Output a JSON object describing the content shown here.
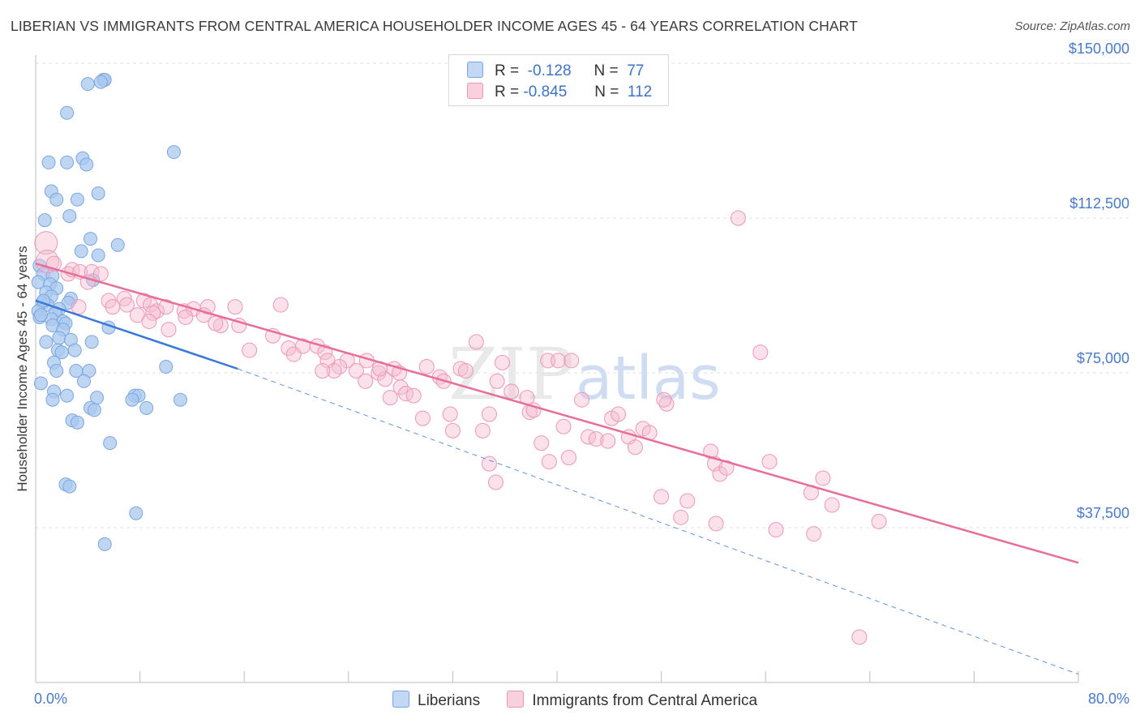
{
  "header": {
    "title": "LIBERIAN VS IMMIGRANTS FROM CENTRAL AMERICA HOUSEHOLDER INCOME AGES 45 - 64 YEARS CORRELATION CHART",
    "source": "Source: ZipAtlas.com"
  },
  "legend": {
    "r_label": "R =",
    "n_label": "N =",
    "rows": [
      {
        "r": "-0.128",
        "n": "77"
      },
      {
        "r": "-0.845",
        "n": "112"
      }
    ]
  },
  "chart_data": {
    "type": "scatter",
    "title": "LIBERIAN VS IMMIGRANTS FROM CENTRAL AMERICA HOUSEHOLDER INCOME AGES 45 - 64 YEARS CORRELATION CHART",
    "xlabel": "",
    "ylabel": "Householder Income Ages 45 - 64 years",
    "x_tick_labels": [
      "0.0%",
      "80.0%"
    ],
    "y_tick_labels": [
      "$150,000",
      "$112,500",
      "$75,000",
      "$37,500"
    ],
    "xlim": [
      0,
      80
    ],
    "ylim": [
      0,
      152000
    ],
    "y_ticks": [
      150000,
      112500,
      75000,
      37500
    ],
    "grid": true,
    "legend_position": "bottom-center",
    "colors": {
      "blue": "#a9c8ef",
      "blue_edge": "#7aa6e0",
      "blue_line": "#3a78d8",
      "pink": "#f5bcd0",
      "pink_edge": "#ee97b5",
      "pink_line": "#e86e9a",
      "axis_label": "#4a78c8"
    },
    "series": [
      {
        "name": "Liberians",
        "color": "#a9c8ef",
        "trend": {
          "x0": 0,
          "y0": 92500,
          "x1": 15.5,
          "y1": 76000,
          "dash_to_x": 80,
          "dash_to_y": 2000
        },
        "points": [
          [
            5.2,
            146000
          ],
          [
            5.3,
            146000
          ],
          [
            4.0,
            145000
          ],
          [
            5.0,
            145500
          ],
          [
            2.4,
            138000
          ],
          [
            10.6,
            128500
          ],
          [
            3.6,
            127000
          ],
          [
            1.0,
            126000
          ],
          [
            2.4,
            126000
          ],
          [
            3.9,
            125500
          ],
          [
            1.2,
            119000
          ],
          [
            4.8,
            118500
          ],
          [
            1.6,
            117000
          ],
          [
            3.2,
            117000
          ],
          [
            0.7,
            112000
          ],
          [
            2.6,
            113000
          ],
          [
            4.2,
            107500
          ],
          [
            6.3,
            106000
          ],
          [
            4.8,
            103500
          ],
          [
            3.5,
            104500
          ],
          [
            0.3,
            101000
          ],
          [
            0.6,
            99000
          ],
          [
            1.3,
            98500
          ],
          [
            0.2,
            97000
          ],
          [
            1.1,
            96500
          ],
          [
            1.6,
            95500
          ],
          [
            4.4,
            97500
          ],
          [
            0.8,
            94500
          ],
          [
            1.2,
            93500
          ],
          [
            2.7,
            93000
          ],
          [
            2.5,
            92000
          ],
          [
            0.5,
            92000
          ],
          [
            0.9,
            91500
          ],
          [
            1.8,
            90500
          ],
          [
            0.2,
            90000
          ],
          [
            1.5,
            89500
          ],
          [
            0.3,
            88500
          ],
          [
            1.2,
            88000
          ],
          [
            2.1,
            87500
          ],
          [
            1.3,
            86500
          ],
          [
            2.3,
            87000
          ],
          [
            2.1,
            85500
          ],
          [
            5.6,
            86000
          ],
          [
            1.8,
            83500
          ],
          [
            2.7,
            83000
          ],
          [
            4.3,
            82500
          ],
          [
            0.8,
            82500
          ],
          [
            1.7,
            80500
          ],
          [
            2.0,
            80000
          ],
          [
            3.0,
            80500
          ],
          [
            1.4,
            77500
          ],
          [
            1.6,
            75500
          ],
          [
            3.1,
            75500
          ],
          [
            4.1,
            75500
          ],
          [
            10.0,
            76500
          ],
          [
            3.7,
            73000
          ],
          [
            0.4,
            72500
          ],
          [
            1.4,
            70500
          ],
          [
            2.4,
            69500
          ],
          [
            1.3,
            68500
          ],
          [
            7.6,
            69500
          ],
          [
            7.9,
            69500
          ],
          [
            4.7,
            69000
          ],
          [
            7.4,
            68500
          ],
          [
            11.1,
            68500
          ],
          [
            4.2,
            66500
          ],
          [
            4.5,
            66000
          ],
          [
            8.5,
            66500
          ],
          [
            2.8,
            63500
          ],
          [
            3.2,
            63000
          ],
          [
            5.7,
            58000
          ],
          [
            2.3,
            48000
          ],
          [
            2.6,
            47500
          ],
          [
            7.7,
            41000
          ],
          [
            5.3,
            33500
          ],
          [
            0.6,
            92500
          ],
          [
            0.4,
            89000
          ]
        ]
      },
      {
        "name": "Immigrants from Central America",
        "color": "#f5bcd0",
        "trend": {
          "x0": 0,
          "y0": 101500,
          "x1": 80,
          "y1": 29000
        },
        "points": [
          [
            0.8,
            106500
          ],
          [
            0.9,
            102000
          ],
          [
            1.4,
            101500
          ],
          [
            2.5,
            99000
          ],
          [
            2.8,
            100000
          ],
          [
            3.4,
            99500
          ],
          [
            4.3,
            99500
          ],
          [
            5.0,
            99000
          ],
          [
            4.0,
            97000
          ],
          [
            3.3,
            91000
          ],
          [
            5.6,
            92500
          ],
          [
            6.8,
            93000
          ],
          [
            7.0,
            91500
          ],
          [
            5.9,
            91000
          ],
          [
            8.3,
            92500
          ],
          [
            8.8,
            91500
          ],
          [
            9.3,
            90000
          ],
          [
            10.0,
            91000
          ],
          [
            9.0,
            89500
          ],
          [
            7.8,
            89000
          ],
          [
            11.4,
            90000
          ],
          [
            12.1,
            90500
          ],
          [
            13.2,
            91000
          ],
          [
            12.9,
            89000
          ],
          [
            14.2,
            86500
          ],
          [
            11.5,
            88500
          ],
          [
            8.7,
            87500
          ],
          [
            13.8,
            87000
          ],
          [
            15.6,
            86500
          ],
          [
            10.2,
            85500
          ],
          [
            15.3,
            91000
          ],
          [
            18.8,
            91500
          ],
          [
            18.2,
            84000
          ],
          [
            20.5,
            81500
          ],
          [
            21.6,
            81500
          ],
          [
            19.4,
            81000
          ],
          [
            16.4,
            80500
          ],
          [
            19.8,
            79500
          ],
          [
            22.2,
            80000
          ],
          [
            22.4,
            78000
          ],
          [
            23.9,
            78000
          ],
          [
            25.4,
            78000
          ],
          [
            23.3,
            76500
          ],
          [
            22.9,
            75500
          ],
          [
            22.0,
            75500
          ],
          [
            24.6,
            75500
          ],
          [
            26.3,
            75000
          ],
          [
            26.8,
            73500
          ],
          [
            27.5,
            76000
          ],
          [
            27.9,
            75000
          ],
          [
            28.0,
            71500
          ],
          [
            27.2,
            69000
          ],
          [
            28.4,
            70000
          ],
          [
            25.3,
            73000
          ],
          [
            29.0,
            69500
          ],
          [
            30.0,
            76500
          ],
          [
            31.0,
            74000
          ],
          [
            31.3,
            73000
          ],
          [
            31.8,
            65000
          ],
          [
            32.0,
            61000
          ],
          [
            32.6,
            76000
          ],
          [
            33.0,
            75500
          ],
          [
            33.8,
            82500
          ],
          [
            34.3,
            61000
          ],
          [
            34.8,
            65000
          ],
          [
            35.4,
            73000
          ],
          [
            34.8,
            53000
          ],
          [
            35.3,
            48500
          ],
          [
            35.8,
            77500
          ],
          [
            36.5,
            70500
          ],
          [
            37.7,
            69000
          ],
          [
            37.9,
            65500
          ],
          [
            38.2,
            66000
          ],
          [
            38.8,
            58000
          ],
          [
            39.3,
            78000
          ],
          [
            39.4,
            53500
          ],
          [
            40.1,
            78000
          ],
          [
            40.5,
            62000
          ],
          [
            40.9,
            54500
          ],
          [
            41.1,
            78000
          ],
          [
            41.9,
            68500
          ],
          [
            42.4,
            59500
          ],
          [
            43.0,
            59000
          ],
          [
            43.9,
            58500
          ],
          [
            44.2,
            64000
          ],
          [
            44.7,
            65000
          ],
          [
            45.5,
            59500
          ],
          [
            46.0,
            57000
          ],
          [
            46.6,
            61500
          ],
          [
            47.1,
            60500
          ],
          [
            48.4,
            67500
          ],
          [
            48.2,
            68500
          ],
          [
            48.0,
            45000
          ],
          [
            49.5,
            40000
          ],
          [
            50.0,
            44000
          ],
          [
            51.8,
            56000
          ],
          [
            52.1,
            53000
          ],
          [
            52.5,
            50500
          ],
          [
            52.2,
            38500
          ],
          [
            53.0,
            52000
          ],
          [
            55.6,
            80000
          ],
          [
            56.3,
            53500
          ],
          [
            56.8,
            37000
          ],
          [
            59.5,
            46000
          ],
          [
            59.7,
            36000
          ],
          [
            60.4,
            49500
          ],
          [
            61.1,
            43000
          ],
          [
            64.7,
            39000
          ],
          [
            63.2,
            11000
          ],
          [
            53.9,
            112500
          ],
          [
            26.4,
            76000
          ],
          [
            29.7,
            64000
          ]
        ]
      }
    ]
  },
  "bottom_legend": {
    "items": [
      {
        "label": "Liberians"
      },
      {
        "label": "Immigrants from Central America"
      }
    ]
  },
  "watermark": {
    "text_zip": "ZIP",
    "text_atlas": "atlas"
  }
}
